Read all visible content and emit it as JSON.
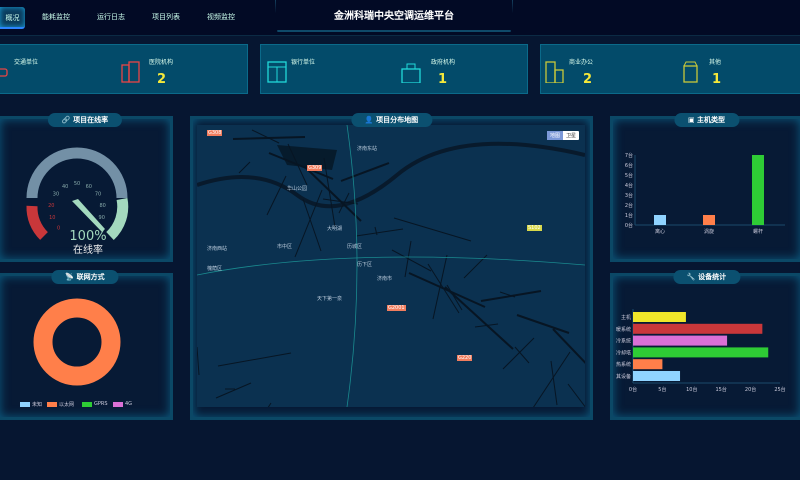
{
  "header": {
    "title": "金洲科瑞中央空调运维平台",
    "tabs": [
      {
        "label": "概况",
        "active": true
      },
      {
        "label": "能耗监控"
      },
      {
        "label": "运行日志"
      },
      {
        "label": "项目列表"
      },
      {
        "label": "视频监控"
      }
    ]
  },
  "stats": [
    {
      "label": "交通单位",
      "value": "",
      "icon": "car-icon",
      "color": "#e84545"
    },
    {
      "label": "医院机构",
      "value": "2",
      "icon": "hospital-icon",
      "color": "#e84545"
    },
    {
      "label": "银行单位",
      "value": "",
      "icon": "bank-icon",
      "color": "#21d9d9"
    },
    {
      "label": "政府机构",
      "value": "1",
      "icon": "government-building-icon",
      "color": "#21d9d9"
    },
    {
      "label": "商业办公",
      "value": "2",
      "icon": "office-building-icon",
      "color": "#c8c83a"
    },
    {
      "label": "其他",
      "value": "1",
      "icon": "other-building-icon",
      "color": "#c8c83a"
    }
  ],
  "online": {
    "title": "项目在线率",
    "value": 100,
    "value_text": "100%",
    "label": "在线率",
    "ticks": [
      "0",
      "10",
      "20",
      "30",
      "40",
      "50",
      "60",
      "70",
      "80",
      "90"
    ]
  },
  "network": {
    "title": "联网方式",
    "legend": [
      {
        "name": "未知",
        "color": "#8fd3ff",
        "value": 0
      },
      {
        "name": "以太网",
        "color": "#ff7f4a",
        "value": 100
      },
      {
        "name": "GPRS",
        "color": "#2ecc35",
        "value": 0
      },
      {
        "name": "4G",
        "color": "#da70d6",
        "value": 0
      }
    ]
  },
  "map": {
    "title": "项目分布地图",
    "btn_map": "地图",
    "btn_sat": "卫星",
    "labels": [
      "G308",
      "G309",
      "G220",
      "济南东站",
      "华山公园",
      "天下第一泉",
      "槐荫区",
      "市中区",
      "历城区",
      "济南市",
      "G2001",
      "S102",
      "历下区",
      "济南西站",
      "大明湖"
    ]
  },
  "host_type": {
    "title": "主机类型",
    "chart_data": {
      "type": "bar",
      "categories": [
        "离心",
        "涡旋",
        "螺杆"
      ],
      "values": [
        1,
        1,
        7
      ],
      "colors": [
        "#8fd3ff",
        "#ff7f4a",
        "#2ecc35"
      ],
      "yticks": [
        "0台",
        "1台",
        "2台",
        "3台",
        "4台",
        "5台",
        "6台",
        "7台"
      ],
      "ylim": [
        0,
        7
      ]
    }
  },
  "device_stats": {
    "title": "设备统计",
    "chart_data": {
      "type": "bar",
      "orientation": "horizontal",
      "categories": [
        "主机",
        "暖系统",
        "冷系统",
        "冷却塔",
        "热系统",
        "其设备"
      ],
      "values": [
        9,
        22,
        16,
        23,
        5,
        8
      ],
      "colors": [
        "#f0e62a",
        "#c9373a",
        "#da70d6",
        "#2ecc35",
        "#ff7f4a",
        "#8fd3ff"
      ],
      "xticks": [
        "0台",
        "5台",
        "10台",
        "15台",
        "20台",
        "25台"
      ],
      "xlim": [
        0,
        25
      ]
    }
  }
}
